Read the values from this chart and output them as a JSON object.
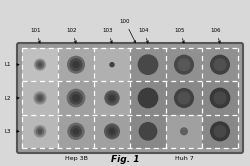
{
  "fig_title": "Fig. 1",
  "figure_bg": "#d8d8d8",
  "outer_plate_color": "#888888",
  "plate_bg": "#b8b8b8",
  "grid_rows": 3,
  "grid_cols": 6,
  "row_labels": [
    "L1",
    "L2",
    "L3"
  ],
  "col_labels": [
    "101",
    "102",
    "103",
    "104",
    "105",
    "106"
  ],
  "bracket_label": "100",
  "bottom_labels": [
    "Hep 3B",
    "Huh 7"
  ],
  "circle_outer_radii": [
    [
      0.32,
      0.5,
      0.12,
      0.58,
      0.56,
      0.56
    ],
    [
      0.36,
      0.52,
      0.42,
      0.58,
      0.56,
      0.58
    ],
    [
      0.34,
      0.48,
      0.44,
      0.52,
      0.2,
      0.56
    ]
  ],
  "circle_mid_radii": [
    [
      0.22,
      0.35,
      0.0,
      0.0,
      0.35,
      0.35
    ],
    [
      0.24,
      0.36,
      0.28,
      0.0,
      0.35,
      0.36
    ],
    [
      0.22,
      0.32,
      0.3,
      0.0,
      0.0,
      0.35
    ]
  ],
  "circle_inner_radii": [
    [
      0.1,
      0.18,
      0.0,
      0.0,
      0.0,
      0.0
    ],
    [
      0.12,
      0.2,
      0.14,
      0.0,
      0.0,
      0.0
    ],
    [
      0.1,
      0.16,
      0.16,
      0.0,
      0.0,
      0.0
    ]
  ],
  "cell_bg": [
    [
      "#c0c0c0",
      "#a8a8a8",
      "#b0b0b0",
      "#909090",
      "#909090",
      "#909090"
    ],
    [
      "#b8b8b8",
      "#a0a0a0",
      "#a8a8a8",
      "#888888",
      "#888888",
      "#888888"
    ],
    [
      "#b8b8b8",
      "#a0a0a0",
      "#a0a0a0",
      "#888888",
      "#a0a0a0",
      "#888888"
    ]
  ],
  "col1_outer": "#909090",
  "col1_mid": "#686868",
  "col1_inner": "#505050",
  "col2_outer": "#686868",
  "col2_mid": "#484848",
  "col2_inner": "#383838",
  "col3_outer": "#404040",
  "col3_mid": "#585858",
  "col3_inner": "#404040",
  "col4_outer": "#484848",
  "col4_mid": "none",
  "col4_inner": "none",
  "col5_outer": "#484848",
  "col5_mid": "#606060",
  "col5_inner": "none",
  "col6_outer": "#383838",
  "col6_mid": "#505050",
  "col6_inner": "none",
  "circle_colors_outer": [
    [
      "#909090",
      "#686868",
      "#404040",
      "#484848",
      "#484848",
      "#404040"
    ],
    [
      "#909090",
      "#686868",
      "#585858",
      "#3c3c3c",
      "#404040",
      "#383838"
    ],
    [
      "#909090",
      "#686868",
      "#585858",
      "#444444",
      "#606060",
      "#383838"
    ]
  ],
  "circle_colors_mid": [
    [
      "#686868",
      "#484848",
      "none",
      "none",
      "#585858",
      "#505050"
    ],
    [
      "#686868",
      "#484848",
      "#484848",
      "none",
      "#505050",
      "#484848"
    ],
    [
      "#686868",
      "#484848",
      "#484848",
      "none",
      "none",
      "#484848"
    ]
  ],
  "circle_colors_inner": [
    [
      "#505050",
      "#383838",
      "none",
      "none",
      "none",
      "none"
    ],
    [
      "#505050",
      "#383838",
      "#383838",
      "none",
      "none",
      "none"
    ],
    [
      "#505050",
      "#383838",
      "#383838",
      "none",
      "none",
      "none"
    ]
  ]
}
